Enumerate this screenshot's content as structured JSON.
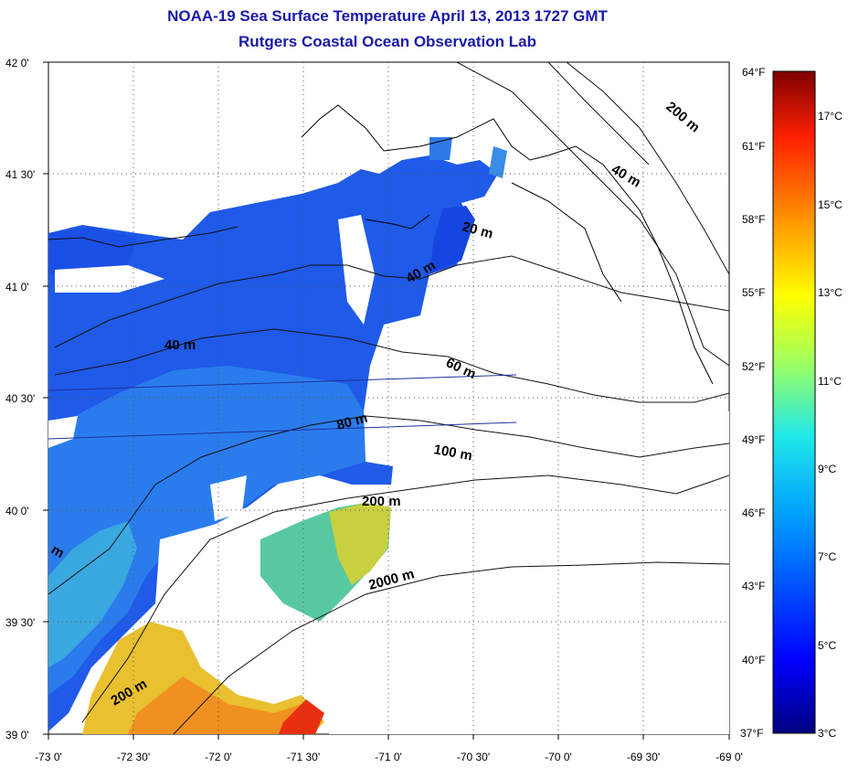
{
  "title": {
    "line1": "NOAA-19 Sea Surface Temperature April 13, 2013 1727 GMT",
    "line2": "Rutgers Coastal Ocean Observation Lab"
  },
  "axes": {
    "lat_labels": [
      "42 0'",
      "41 30'",
      "41 0'",
      "40 30'",
      "40 0'",
      "39 30'",
      "39 0'"
    ],
    "lon_labels": [
      "-73 0'",
      "-72 30'",
      "-72 0'",
      "-71 30'",
      "-71 0'",
      "-70 30'",
      "-70 0'",
      "-69 30'",
      "-69 0'"
    ],
    "lat_range": [
      39.0,
      42.0
    ],
    "lon_range": [
      -73.0,
      -69.0
    ],
    "grid": "dotted"
  },
  "colorbar": {
    "f_labels": [
      "64°F",
      "61°F",
      "58°F",
      "55°F",
      "52°F",
      "49°F",
      "46°F",
      "43°F",
      "40°F",
      "37°F"
    ],
    "c_labels": [
      "17°C",
      "15°C",
      "13°C",
      "11°C",
      "9°C",
      "7°C",
      "5°C",
      "3°C"
    ],
    "range_c": [
      3,
      18
    ],
    "colors": [
      "#00007f",
      "#0000ff",
      "#0080ff",
      "#00ffff",
      "#80ff80",
      "#ffff00",
      "#ff8000",
      "#ff0000",
      "#800000"
    ]
  },
  "contour_labels": [
    "200 m",
    "40 m",
    "20 m",
    "40 m",
    "40 m",
    "60 m",
    "80 m",
    "100 m",
    "200 m",
    "2000 m",
    "200 m",
    "m"
  ],
  "colors": {
    "title": "#1a1aa8",
    "water_deep_blue": "#1040e0",
    "water_mid_blue": "#2878e8",
    "water_cyan": "#40c8d8",
    "water_warm": "#f0a020"
  }
}
